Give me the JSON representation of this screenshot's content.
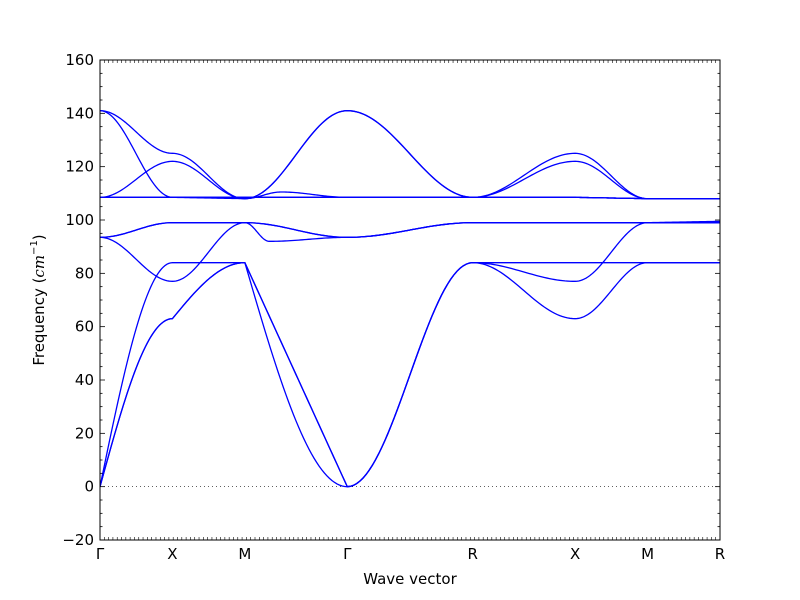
{
  "chart_data": {
    "type": "line",
    "xlabel": "Wave vector",
    "ylabel": "Frequency (cm⁻¹)",
    "ylabel_parts": {
      "prefix": "Frequency (",
      "math": "cm",
      "sup": "−1",
      "suffix": ")"
    },
    "ylim": [
      -20,
      160
    ],
    "yticks": [
      -20,
      0,
      20,
      40,
      60,
      80,
      100,
      120,
      140,
      160
    ],
    "grid": false,
    "line_color": "#0000ff",
    "zero_line": {
      "y": 0,
      "style": "dotted",
      "color": "#000000"
    },
    "high_symmetry_points": [
      {
        "label": "Γ",
        "x": 0.0
      },
      {
        "label": "X",
        "x": 0.5
      },
      {
        "label": "M",
        "x": 1.0
      },
      {
        "label": "Γ",
        "x": 1.707
      },
      {
        "label": "R",
        "x": 2.573
      },
      {
        "label": "X",
        "x": 3.28
      },
      {
        "label": "M",
        "x": 3.78
      },
      {
        "label": "R",
        "x": 4.28
      }
    ],
    "xlim": [
      0,
      4.28
    ],
    "series": [
      {
        "values": [
          [
            0,
            0
          ],
          [
            0.5,
            63
          ],
          [
            1.0,
            84
          ],
          [
            1.707,
            0
          ],
          [
            2.573,
            84
          ],
          [
            3.28,
            84
          ],
          [
            3.78,
            84
          ],
          [
            4.28,
            84
          ]
        ],
        "shapes": [
          "sin",
          "sin",
          "sin",
          "cos",
          "flat",
          "flat",
          "flat"
        ]
      },
      {
        "values": [
          [
            0,
            0
          ],
          [
            0.5,
            63
          ],
          [
            1.0,
            84
          ],
          [
            1.707,
            0
          ],
          [
            2.573,
            84
          ],
          [
            3.28,
            63
          ],
          [
            3.78,
            84
          ],
          [
            4.28,
            84
          ]
        ],
        "shapes": [
          "sin",
          "sin",
          "lin",
          "cos",
          "cos",
          "cos",
          "flat"
        ]
      },
      {
        "values": [
          [
            0,
            0
          ],
          [
            0.5,
            84
          ],
          [
            1.0,
            84
          ],
          [
            1.707,
            0
          ],
          [
            2.573,
            84
          ],
          [
            3.28,
            77
          ],
          [
            3.78,
            99
          ],
          [
            4.28,
            99
          ]
        ],
        "shapes": [
          "sin",
          "flat",
          "lin",
          "cos",
          "cos",
          "cos",
          "flat"
        ]
      },
      {
        "values": [
          [
            0,
            93.5
          ],
          [
            0.5,
            77
          ],
          [
            1.0,
            99
          ],
          [
            1.707,
            93.5
          ],
          [
            2.573,
            99
          ],
          [
            3.28,
            99
          ],
          [
            3.78,
            99
          ],
          [
            4.28,
            99
          ]
        ],
        "shapes": [
          "cos",
          "cos",
          "cos",
          "cos",
          "flat",
          "flat",
          "flat"
        ]
      },
      {
        "values": [
          [
            0,
            93.5
          ],
          [
            0.5,
            99
          ],
          [
            1.0,
            99
          ],
          [
            1.707,
            93.5
          ],
          [
            2.573,
            99
          ],
          [
            3.28,
            99
          ],
          [
            3.78,
            99
          ],
          [
            4.28,
            99.5
          ]
        ],
        "shapes": [
          "cos",
          "flat",
          "cos",
          "cos",
          "flat",
          "flat",
          "flat"
        ]
      },
      {
        "values": [
          [
            0,
            108.5
          ],
          [
            0.5,
            108.5
          ],
          [
            1.0,
            108.5
          ],
          [
            1.707,
            108.5
          ],
          [
            2.573,
            108.5
          ],
          [
            3.28,
            108.5
          ],
          [
            3.78,
            108
          ],
          [
            4.28,
            108
          ]
        ],
        "shapes": [
          "flat",
          "flat",
          "flat",
          "flat",
          "flat",
          "flat",
          "flat"
        ]
      },
      {
        "values": [
          [
            0,
            108.5
          ],
          [
            0.5,
            122
          ],
          [
            1.0,
            108
          ],
          [
            1.707,
            141
          ],
          [
            2.573,
            108.5
          ],
          [
            3.28,
            122
          ],
          [
            3.78,
            108
          ],
          [
            4.28,
            108
          ]
        ],
        "shapes": [
          "cos",
          "cos",
          "cos",
          "cos",
          "cos",
          "cos",
          "flat"
        ]
      },
      {
        "values": [
          [
            0,
            141
          ],
          [
            0.5,
            125
          ],
          [
            1.0,
            108
          ],
          [
            1.707,
            141
          ],
          [
            2.573,
            108.5
          ],
          [
            3.28,
            125
          ],
          [
            3.78,
            108
          ],
          [
            4.28,
            108
          ]
        ],
        "shapes": [
          "cos",
          "cos",
          "cos",
          "cos",
          "cos",
          "cos",
          "flat"
        ]
      },
      {
        "values": [
          [
            0,
            141
          ],
          [
            0.5,
            108.5
          ],
          [
            1.0,
            108.5
          ],
          [
            1.707,
            108.5
          ],
          [
            2.573,
            108.5
          ],
          [
            3.28,
            108.5
          ],
          [
            3.78,
            108
          ],
          [
            4.28,
            108
          ]
        ],
        "shapes": [
          "cos",
          "flat",
          "flat",
          "flat",
          "flat",
          "flat",
          "flat"
        ]
      },
      {
        "values": [
          [
            0,
            93.5
          ],
          [
            0.5,
            99
          ],
          [
            1.0,
            99
          ],
          [
            1.17,
            92
          ],
          [
            1.707,
            93.5
          ],
          [
            2.573,
            99
          ],
          [
            3.28,
            99
          ],
          [
            3.78,
            99
          ],
          [
            4.28,
            99
          ]
        ],
        "shapes": [
          "cos",
          "flat",
          "cos",
          "cos",
          "cos",
          "flat",
          "flat",
          "flat"
        ]
      },
      {
        "values": [
          [
            0,
            108.5
          ],
          [
            0.5,
            108.5
          ],
          [
            1.0,
            108
          ],
          [
            1.25,
            110.5
          ],
          [
            1.707,
            108.5
          ],
          [
            2.573,
            108.5
          ],
          [
            3.28,
            108.5
          ],
          [
            3.78,
            108
          ],
          [
            4.28,
            108
          ]
        ],
        "shapes": [
          "flat",
          "flat",
          "cos",
          "cos",
          "flat",
          "flat",
          "flat",
          "flat"
        ]
      }
    ]
  }
}
